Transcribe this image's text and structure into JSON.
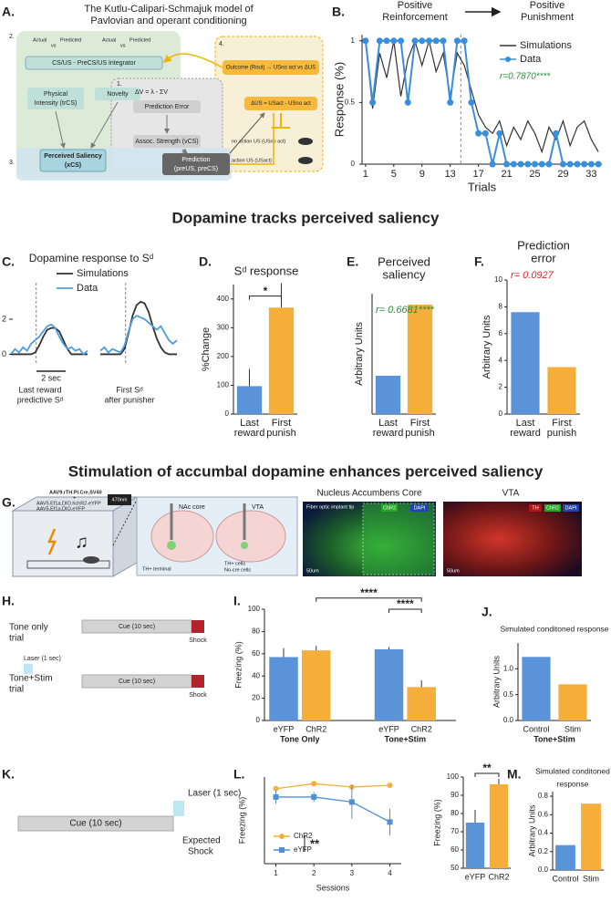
{
  "figure": {
    "panel_labels": [
      "A.",
      "B.",
      "C.",
      "D.",
      "E.",
      "F.",
      "G.",
      "H.",
      "I.",
      "J.",
      "K.",
      "L.",
      "M."
    ],
    "headings": [
      "Dopamine tracks perceived saliency",
      "Stimulation of accumbal dopamine enhances perceived saliency"
    ]
  },
  "model": {
    "title": [
      "The Kutlu-Calipari-Schmajuk model of",
      "Pavlovian and operant conditioning"
    ],
    "integrator": "CS/US - PreCS/US Integrator",
    "intensity": [
      "Physical",
      "Intensity (trCS)"
    ],
    "novelty": "Novelty",
    "saliency": [
      "Perceived Saliency",
      "(xCS)"
    ],
    "error": "Prediction Error",
    "strength": "Assoc. Strength (vCS)",
    "prediction": [
      "Prediction",
      "(preUS, preCS)"
    ],
    "outcome": "Outcome (Rout) → USno act vs ΔUS",
    "delta": "ΔUS = USact - USno act",
    "equation": "ΔV = λ - ΣV",
    "steps": [
      "1.",
      "2.",
      "3.",
      "4."
    ],
    "notes": [
      "no action US (USno act)",
      "action US (USact)"
    ],
    "compare": [
      "Actual",
      "vs",
      "Predicted",
      "Actual",
      "vs",
      "Predicted"
    ]
  },
  "stim": {
    "viruses": [
      "AAV9.rTH.PI.Cre.SV40",
      "+",
      "AAV5.Ef1a.DIO.hchR2-eYFP",
      "AAV5.Ef1a.DIO.eYFP"
    ],
    "laser": "470nm",
    "brain": [
      "NAc core",
      "VTA",
      "TH+ terminal",
      "TH+ cells",
      "No-cre cells"
    ],
    "images": [
      {
        "title": "Nucleus Accumbens Core",
        "tags": [
          "ChR2",
          "DAPI"
        ],
        "note": "Fiber optic implant tip",
        "scale": "50um"
      },
      {
        "title": "VTA",
        "tags": [
          "TH",
          "ChR2",
          "DAPI"
        ],
        "scale": "50um"
      }
    ]
  },
  "trials": {
    "rows": [
      [
        "Tone only",
        "trial"
      ],
      [
        "Tone+Stim",
        "trial"
      ]
    ],
    "cue": "Cue (10 sec)",
    "shock": "Shock",
    "laser": "Laser (1 sec)"
  },
  "expected": {
    "cue": "Cue (10 sec)",
    "laser": "Laser (1 sec)",
    "shock": [
      "Expected",
      "Shock"
    ]
  },
  "chart_data": [
    {
      "type": "line",
      "phases": [
        [
          "Positive",
          "Reinforcement"
        ],
        [
          "Positive",
          "Punishment"
        ]
      ],
      "xlabel": "Trials",
      "ylabel": "Response (%)",
      "x": [
        1,
        2,
        3,
        4,
        5,
        6,
        7,
        8,
        9,
        10,
        11,
        12,
        13,
        14,
        15,
        16,
        17,
        18,
        19,
        20,
        21,
        22,
        23,
        24,
        25,
        26,
        27,
        28,
        29,
        30,
        31,
        32,
        33,
        34
      ],
      "series": [
        {
          "name": "Simulations",
          "color": "#333333",
          "values": [
            1,
            0.45,
            0.9,
            0.7,
            1,
            0.55,
            0.85,
            1,
            0.8,
            1,
            0.75,
            0.9,
            0.55,
            0.9,
            0.8,
            0.6,
            0.4,
            0.3,
            0.25,
            0.35,
            0.15,
            0.3,
            0.2,
            0.35,
            0.25,
            0.1,
            0.3,
            0.2,
            0.35,
            0.15,
            0.3,
            0.35,
            0.2,
            0.1
          ]
        },
        {
          "name": "Data",
          "color": "#3a8fdc",
          "marker": "circle",
          "values": [
            1,
            0.5,
            1,
            1,
            1,
            1,
            0.5,
            1,
            1,
            1,
            1,
            1,
            0.5,
            1,
            1,
            0.5,
            0.25,
            0.25,
            0,
            0.25,
            0,
            0,
            0,
            0,
            0,
            0,
            0,
            0.25,
            0,
            0,
            0,
            0,
            0,
            0
          ]
        }
      ],
      "xlim": [
        0.5,
        34.5
      ],
      "xticks": [
        1,
        5,
        9,
        13,
        17,
        21,
        25,
        29,
        33
      ],
      "ylim": [
        0,
        1.05
      ],
      "yticks": [
        0,
        0.5,
        1
      ],
      "divider_x": 14.5,
      "annotation": "r=0.7870****",
      "annotation_color": "#2a8a3a"
    },
    {
      "type": "trace",
      "title": "Dopamine response to Sᵈ",
      "groups": [
        [
          "Last reward",
          "predictive Sᵈ"
        ],
        [
          "First Sᵈ",
          "after punisher"
        ]
      ],
      "series": [
        {
          "name": "Simulations",
          "color": "#333333",
          "values": [
            [
              0,
              0,
              0,
              0,
              0,
              0,
              0.1,
              0.5,
              1,
              1.4,
              1.5,
              1.5,
              1.3,
              0.8,
              0.3,
              0,
              0,
              0,
              0,
              0
            ],
            [
              0,
              0,
              0,
              0,
              0,
              0,
              0.3,
              1.2,
              2.2,
              2.8,
              3,
              2.9,
              2.4,
              1.6,
              0.9,
              0.4,
              0.1,
              0,
              0,
              0
            ]
          ]
        },
        {
          "name": "Data",
          "color": "#4f9de0",
          "values": [
            [
              0,
              0.3,
              0.1,
              0.4,
              0.2,
              0.6,
              0.8,
              1,
              1.3,
              1.6,
              1.7,
              1.5,
              1,
              0.6,
              0.3,
              0.4,
              0.2,
              0.3,
              0,
              0.2
            ],
            [
              0.2,
              0.4,
              0.1,
              0.3,
              0.2,
              0.1,
              0.5,
              1.3,
              2,
              2.2,
              2.1,
              2,
              1.8,
              1.6,
              1.4,
              1.6,
              1.2,
              0.8,
              0.6,
              0.8
            ]
          ]
        }
      ],
      "ylim": [
        -0.6,
        3.3
      ],
      "yticks": [
        0,
        2
      ],
      "scale_label": "2 sec"
    },
    {
      "type": "bar",
      "title": [
        "Sᵈ response"
      ],
      "ylabel": "%Change",
      "categories": [
        [
          "Last",
          "reward"
        ],
        [
          "First",
          "punish"
        ]
      ],
      "values": [
        97,
        370
      ],
      "errors": [
        60,
        85
      ],
      "colors": [
        "#5b93d9",
        "#f5ae3a"
      ],
      "ylim": [
        0,
        450
      ],
      "yticks": [
        0,
        100,
        200,
        300,
        400
      ],
      "significance": [
        "*"
      ]
    },
    {
      "type": "bar",
      "title": [
        "Perceived",
        "saliency"
      ],
      "ylabel": "Arbitrary Units",
      "categories": [
        [
          "Last",
          "reward"
        ],
        [
          "First",
          "punish"
        ]
      ],
      "values": [
        0.35,
        1.0
      ],
      "colors": [
        "#5b93d9",
        "#f5ae3a"
      ],
      "ylim": [
        0,
        1.1
      ],
      "annotation": "r= 0.6681****",
      "annotation_color": "#2a8a3a"
    },
    {
      "type": "bar",
      "title": [
        "Prediction",
        "error"
      ],
      "ylabel": "Arbitrary Units",
      "categories": [
        [
          "Last",
          "reward"
        ],
        [
          "First",
          "punish"
        ]
      ],
      "values": [
        7.6,
        3.5
      ],
      "colors": [
        "#5b93d9",
        "#f5ae3a"
      ],
      "ylim": [
        0,
        10
      ],
      "yticks": [
        0,
        2,
        4,
        6,
        8,
        10
      ],
      "annotation": "r= 0.0927",
      "annotation_color": "#e0262b"
    },
    {
      "type": "bar",
      "ylabel": "Freezing (%)",
      "categories": [
        [
          "eYFP"
        ],
        [
          "ChR2"
        ],
        [
          "eYFP"
        ],
        [
          "ChR2"
        ]
      ],
      "groups": [
        "Tone Only",
        "Tone+Stim"
      ],
      "values": [
        57,
        63,
        64,
        30
      ],
      "errors": [
        8,
        4,
        2,
        6
      ],
      "colors": [
        "#5b93d9",
        "#f5ae3a",
        "#5b93d9",
        "#f5ae3a"
      ],
      "ylim": [
        0,
        100
      ],
      "yticks": [
        0,
        20,
        40,
        60,
        80,
        100
      ],
      "significance": [
        "****",
        "****"
      ]
    },
    {
      "type": "bar",
      "title": [
        "Simulated conditoned response"
      ],
      "ylabel": "Arbitrary Units",
      "categories": [
        [
          "Control"
        ],
        [
          "Stim"
        ]
      ],
      "groups": [
        "Tone+Stim"
      ],
      "values": [
        1.23,
        0.7
      ],
      "colors": [
        "#5b93d9",
        "#f5ae3a"
      ],
      "ylim": [
        0,
        1.5
      ],
      "yticks": [
        {
          "value": 0,
          "label": "0.0"
        },
        {
          "value": 0.5,
          "label": "0.5"
        },
        {
          "value": 1,
          "label": "1.0"
        }
      ]
    },
    {
      "type": "line",
      "xlabel": "Sessions",
      "ylabel": "Freezing (%)",
      "x": [
        1,
        2,
        3,
        4
      ],
      "series": [
        {
          "name": "ChR2",
          "color": "#f5ae3a",
          "marker": "circle",
          "values": [
            95,
            98,
            96,
            97
          ],
          "errors": [
            1.5,
            1,
            1.5,
            1
          ]
        },
        {
          "name": "eYFP",
          "color": "#4f8fd6",
          "marker": "square",
          "values": [
            90,
            90,
            87,
            75
          ],
          "errors": [
            4,
            3,
            10,
            8
          ]
        }
      ],
      "xlim": [
        0.7,
        4.3
      ],
      "xticks": [
        1,
        2,
        3,
        4
      ],
      "ylim": [
        50,
        102
      ],
      "significance": [
        "**"
      ]
    },
    {
      "type": "bar",
      "ylabel": "Freezing (%)",
      "categories": [
        [
          "eYFP"
        ],
        [
          "ChR2"
        ]
      ],
      "values": [
        75,
        96
      ],
      "errors": [
        7,
        3
      ],
      "colors": [
        "#5b93d9",
        "#f5ae3a"
      ],
      "ylim": [
        50,
        100
      ],
      "yticks": [
        50,
        60,
        70,
        80,
        90,
        100
      ],
      "significance": [
        "**"
      ]
    },
    {
      "type": "bar",
      "title": [
        "Simulated conditoned",
        "response"
      ],
      "ylabel": "Arbitrary Units",
      "categories": [
        [
          "Control"
        ],
        [
          "Stim"
        ]
      ],
      "values": [
        0.27,
        0.72
      ],
      "colors": [
        "#5b93d9",
        "#f5ae3a"
      ],
      "ylim": [
        0,
        0.85
      ],
      "yticks": [
        {
          "value": 0,
          "label": "0.0"
        },
        {
          "value": 0.2,
          "label": "0.2"
        },
        {
          "value": 0.4,
          "label": "0.4"
        },
        {
          "value": 0.6,
          "label": "0.6"
        },
        {
          "value": 0.8,
          "label": "0.8"
        }
      ]
    }
  ]
}
